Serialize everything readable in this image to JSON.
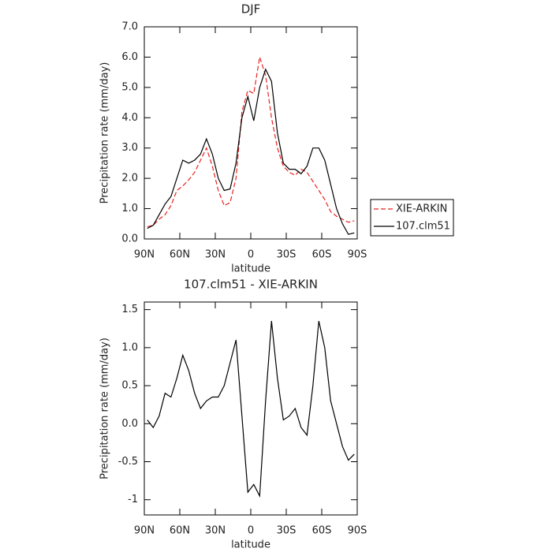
{
  "chart_data": [
    {
      "type": "line",
      "title": "DJF",
      "xlabel": "latitude",
      "ylabel": "Precipitation rate (mm/day)",
      "x": [
        87.5,
        82.5,
        77.5,
        72.5,
        67.5,
        62.5,
        57.5,
        52.5,
        47.5,
        42.5,
        37.5,
        32.5,
        27.5,
        22.5,
        17.5,
        12.5,
        7.5,
        2.5,
        -2.5,
        -7.5,
        -12.5,
        -17.5,
        -22.5,
        -27.5,
        -32.5,
        -37.5,
        -42.5,
        -47.5,
        -52.5,
        -57.5,
        -62.5,
        -67.5,
        -72.5,
        -77.5,
        -82.5,
        -87.5
      ],
      "xlim": [
        90,
        -90
      ],
      "xticks": [
        {
          "value": 90,
          "label": "90N"
        },
        {
          "value": 60,
          "label": "60N"
        },
        {
          "value": 30,
          "label": "30N"
        },
        0,
        {
          "value": -30,
          "label": "30S"
        },
        {
          "value": -60,
          "label": "60S"
        },
        {
          "value": -90,
          "label": "90S"
        }
      ],
      "ylim": [
        0,
        7
      ],
      "yticks": [
        {
          "value": 0,
          "label": "0.0"
        },
        {
          "value": 1,
          "label": "1.0"
        },
        {
          "value": 2,
          "label": "2.0"
        },
        {
          "value": 3,
          "label": "3.0"
        },
        {
          "value": 4,
          "label": "4.0"
        },
        {
          "value": 5,
          "label": "5.0"
        },
        {
          "value": 6,
          "label": "6.0"
        },
        {
          "value": 7,
          "label": "7.0"
        }
      ],
      "legend": "right",
      "series": [
        {
          "name": "XIE-ARKIN",
          "color": "#e8231f",
          "dashed": true,
          "values": [
            0.4,
            0.45,
            0.65,
            0.8,
            1.1,
            1.6,
            1.75,
            1.95,
            2.2,
            2.6,
            3.0,
            2.4,
            1.6,
            1.1,
            1.2,
            2.0,
            4.2,
            4.9,
            4.8,
            6.0,
            5.4,
            4.0,
            3.0,
            2.4,
            2.2,
            2.1,
            2.3,
            2.2,
            1.9,
            1.6,
            1.3,
            0.9,
            0.75,
            0.65,
            0.55,
            0.6
          ]
        },
        {
          "name": "107.clm51",
          "color": "#000000",
          "dashed": false,
          "values": [
            0.35,
            0.45,
            0.8,
            1.15,
            1.4,
            2.0,
            2.6,
            2.5,
            2.6,
            2.8,
            3.3,
            2.8,
            2.0,
            1.6,
            1.65,
            2.5,
            4.0,
            4.7,
            3.9,
            5.0,
            5.6,
            5.2,
            3.5,
            2.5,
            2.3,
            2.3,
            2.15,
            2.4,
            3.0,
            3.0,
            2.6,
            1.8,
            1.0,
            0.5,
            0.15,
            0.2
          ]
        }
      ]
    },
    {
      "type": "line",
      "title": "107.clm51 - XIE-ARKIN",
      "xlabel": "latitude",
      "ylabel": "Precipitation rate (mm/day)",
      "x": [
        87.5,
        82.5,
        77.5,
        72.5,
        67.5,
        62.5,
        57.5,
        52.5,
        47.5,
        42.5,
        37.5,
        32.5,
        27.5,
        22.5,
        17.5,
        12.5,
        7.5,
        2.5,
        -2.5,
        -7.5,
        -12.5,
        -17.5,
        -22.5,
        -27.5,
        -32.5,
        -37.5,
        -42.5,
        -47.5,
        -52.5,
        -57.5,
        -62.5,
        -67.5,
        -72.5,
        -77.5,
        -82.5,
        -87.5
      ],
      "xlim": [
        90,
        -90
      ],
      "xticks": [
        {
          "value": 90,
          "label": "90N"
        },
        {
          "value": 60,
          "label": "60N"
        },
        {
          "value": 30,
          "label": "30N"
        },
        0,
        {
          "value": -30,
          "label": "30S"
        },
        {
          "value": -60,
          "label": "60S"
        },
        {
          "value": -90,
          "label": "90S"
        }
      ],
      "ylim": [
        -1.2,
        1.6
      ],
      "yticks": [
        -1,
        -0.5,
        {
          "value": 0,
          "label": "0.0"
        },
        0.5,
        {
          "value": 1,
          "label": "1.0"
        },
        1.5
      ],
      "series": [
        {
          "color": "#000000",
          "dashed": false,
          "values": [
            0.05,
            -0.05,
            0.1,
            0.4,
            0.35,
            0.6,
            0.9,
            0.7,
            0.4,
            0.2,
            0.3,
            0.35,
            0.35,
            0.5,
            0.8,
            1.1,
            0.1,
            -0.9,
            -0.8,
            -0.95,
            0.3,
            1.35,
            0.6,
            0.05,
            0.1,
            0.2,
            -0.05,
            -0.15,
            0.5,
            1.35,
            1.0,
            0.3,
            0.0,
            -0.3,
            -0.48,
            -0.4
          ]
        }
      ]
    }
  ]
}
